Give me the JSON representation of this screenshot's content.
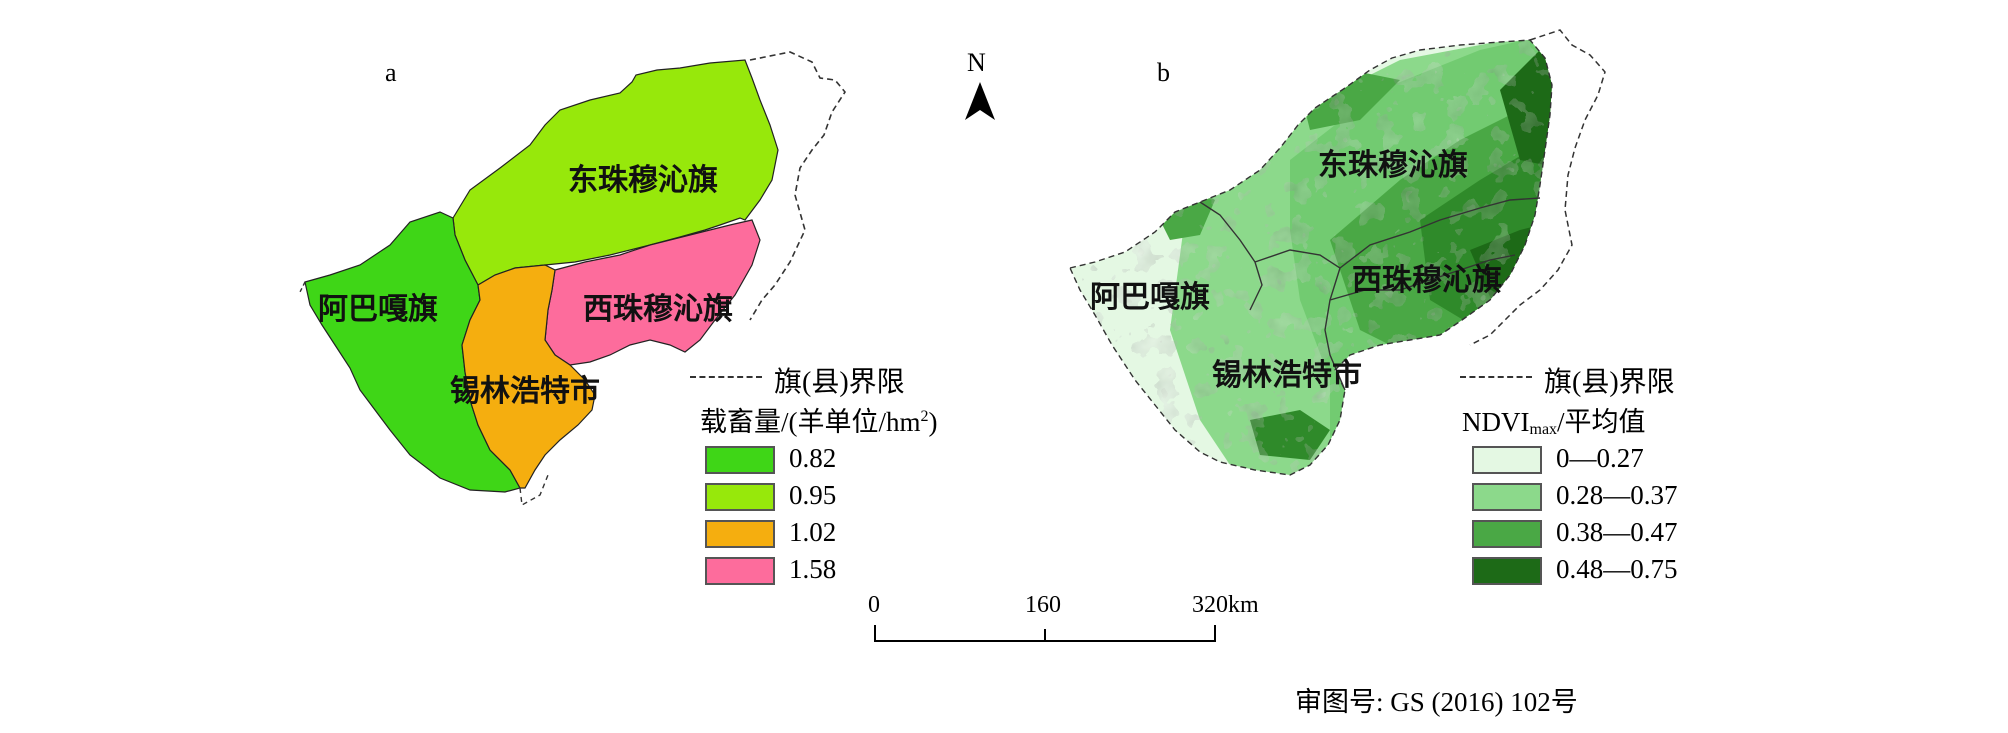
{
  "panel_a": {
    "letter": "a",
    "regions": {
      "east_zhumuqin": "东珠穆沁旗",
      "west_zhumuqin": "西珠穆沁旗",
      "abaga": "阿巴嘎旗",
      "xilinhot": "锡林浩特市"
    },
    "boundary_legend": "旗(县)界限",
    "legend_title_prefix": "载畜量/(羊单位/hm",
    "legend_title_sup": "2",
    "legend_title_suffix": ")",
    "legend": [
      {
        "label": "0.82",
        "color": "#3fd617"
      },
      {
        "label": "0.95",
        "color": "#97e80b"
      },
      {
        "label": "1.02",
        "color": "#f5ae0f"
      },
      {
        "label": "1.58",
        "color": "#fd6c9c"
      }
    ]
  },
  "panel_b": {
    "letter": "b",
    "regions": {
      "east_zhumuqin": "东珠穆沁旗",
      "west_zhumuqin": "西珠穆沁旗",
      "abaga": "阿巴嘎旗",
      "xilinhot": "锡林浩特市"
    },
    "boundary_legend": "旗(县)界限",
    "legend_title_main": "NDVI",
    "legend_title_sub": "max",
    "legend_title_suffix": "/平均值",
    "legend": [
      {
        "label": "0—0.27",
        "color": "#e4f8e3"
      },
      {
        "label": "0.28—0.37",
        "color": "#8cd98b"
      },
      {
        "label": "0.38—0.47",
        "color": "#4aa845"
      },
      {
        "label": "0.48—0.75",
        "color": "#1d6a17"
      }
    ]
  },
  "north_arrow": "N",
  "scale_bar": {
    "ticks": [
      "0",
      "160",
      "320km"
    ]
  },
  "approval_number": "审图号: GS (2016) 102号"
}
